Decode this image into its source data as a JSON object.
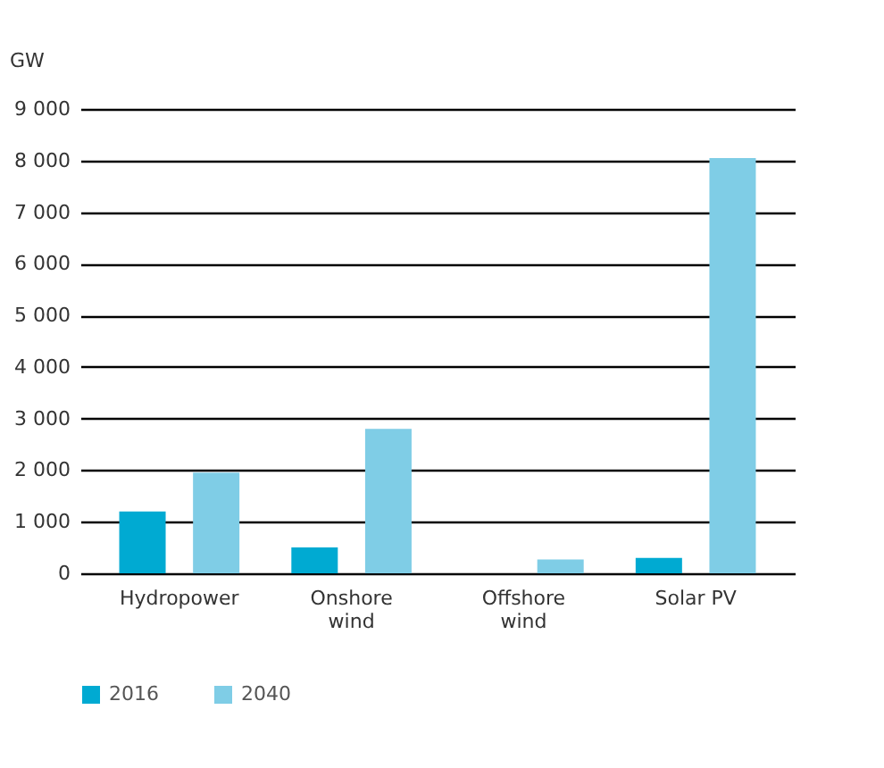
{
  "chart_data": {
    "type": "bar",
    "ylabel": "GW",
    "categories": [
      "Hydropower",
      "Onshore\nwind",
      "Offshore\nwind",
      "Solar PV"
    ],
    "series": [
      {
        "name": "2016",
        "color": "#00aad2",
        "values": [
          1200,
          500,
          0,
          300
        ]
      },
      {
        "name": "2040",
        "color": "#7fcde6",
        "values": [
          1950,
          2800,
          270,
          8050
        ]
      }
    ],
    "ylim": [
      0,
      9000
    ],
    "yticks": [
      {
        "value": 0,
        "label": "0"
      },
      {
        "value": 1000,
        "label": "1 000"
      },
      {
        "value": 2000,
        "label": "2 000"
      },
      {
        "value": 3000,
        "label": "3 000"
      },
      {
        "value": 4000,
        "label": "4 000"
      },
      {
        "value": 5000,
        "label": "5 000"
      },
      {
        "value": 6000,
        "label": "6 000"
      },
      {
        "value": 7000,
        "label": "7 000"
      },
      {
        "value": 8000,
        "label": "8 000"
      },
      {
        "value": 9000,
        "label": "9 000"
      }
    ],
    "grid": "y",
    "legend": "bottom left"
  }
}
